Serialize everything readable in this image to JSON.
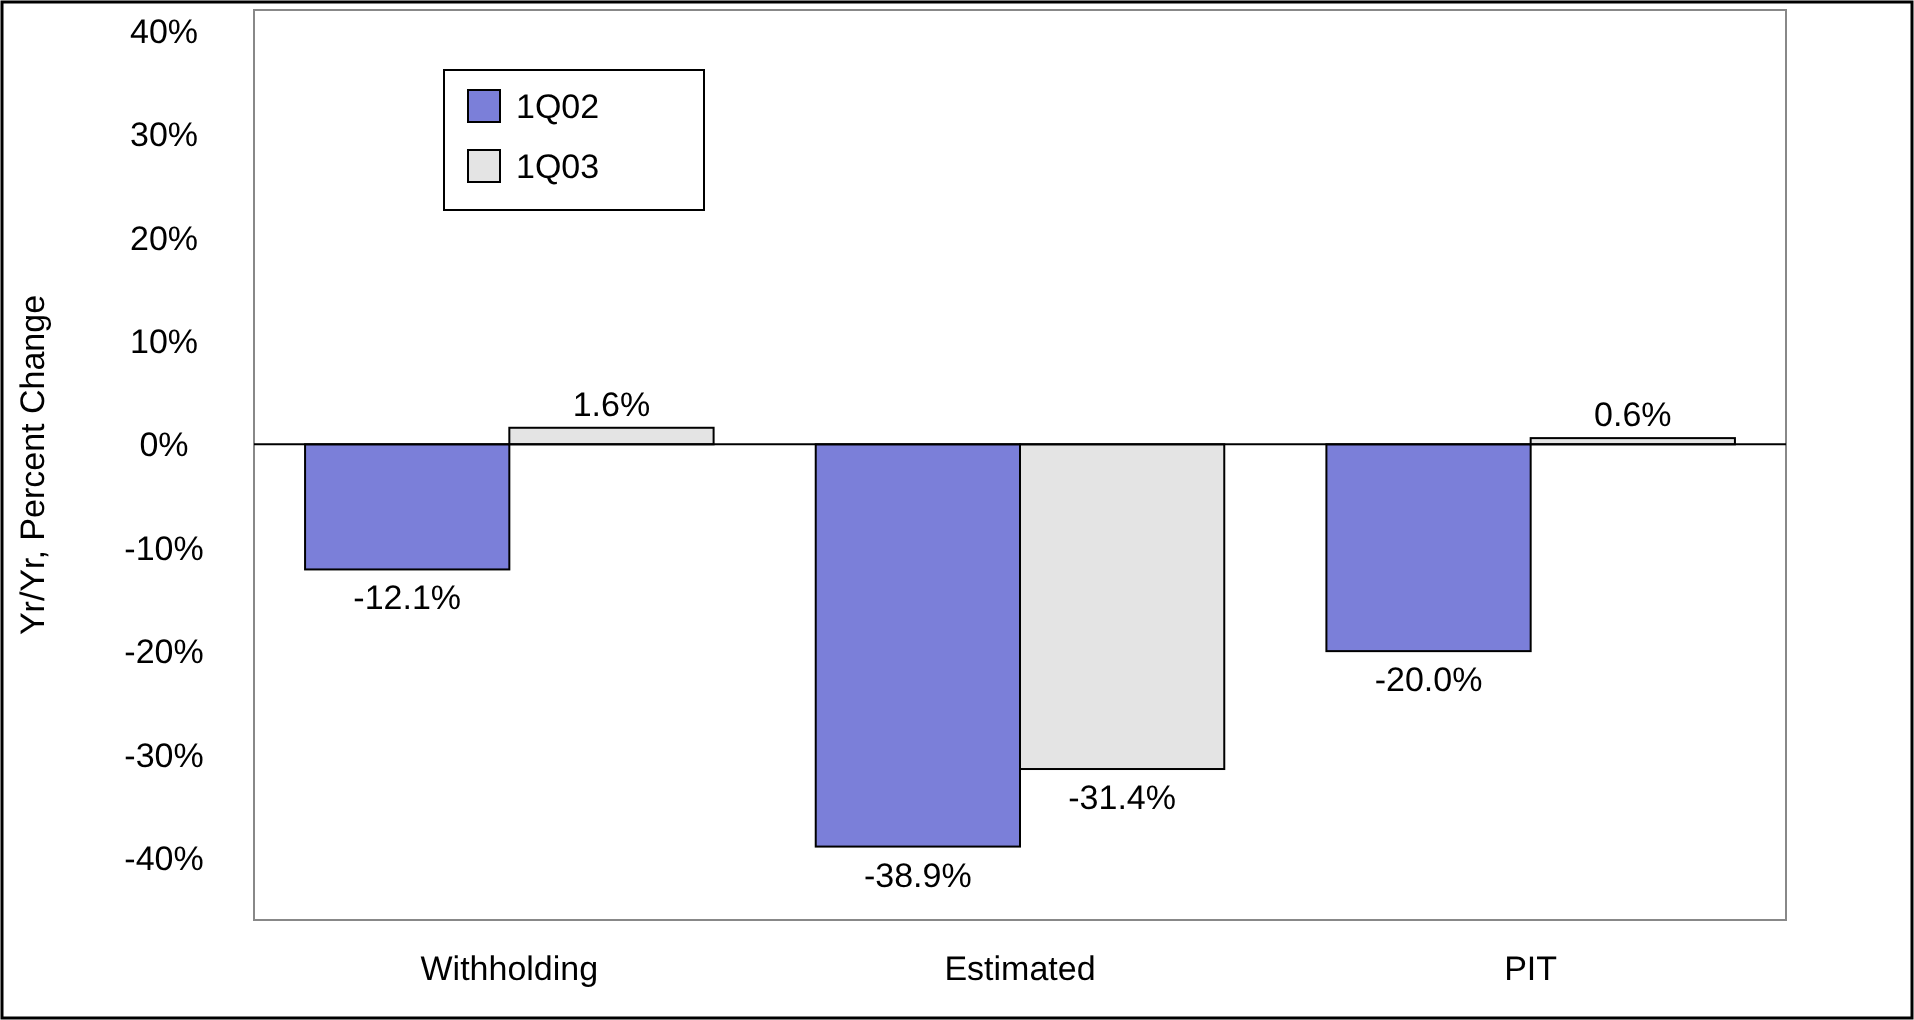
{
  "chart_data": {
    "type": "bar",
    "ylabel": "Yr/Yr, Percent Change",
    "categories": [
      "Withholding",
      "Estimated",
      "PIT"
    ],
    "series": [
      {
        "name": "1Q02",
        "color": "#7b7fd9",
        "values": [
          -12.1,
          -38.9,
          -20.0
        ]
      },
      {
        "name": "1Q03",
        "color": "#e4e4e4",
        "values": [
          1.6,
          -31.4,
          0.6
        ]
      }
    ],
    "value_labels": [
      [
        "-12.1%",
        "-38.9%",
        "-20.0%"
      ],
      [
        "1.6%",
        "-31.4%",
        "0.6%"
      ]
    ],
    "ylim": [
      -46,
      42
    ],
    "yticks": [
      {
        "value": -40,
        "label": "-40%"
      },
      {
        "value": -30,
        "label": "-30%"
      },
      {
        "value": -20,
        "label": "-20%"
      },
      {
        "value": -10,
        "label": "-10%"
      },
      {
        "value": 0,
        "label": "0%"
      },
      {
        "value": 10,
        "label": "10%"
      },
      {
        "value": 20,
        "label": "20%"
      },
      {
        "value": 30,
        "label": "30%"
      },
      {
        "value": 40,
        "label": "40%"
      }
    ],
    "legend": "top left"
  }
}
